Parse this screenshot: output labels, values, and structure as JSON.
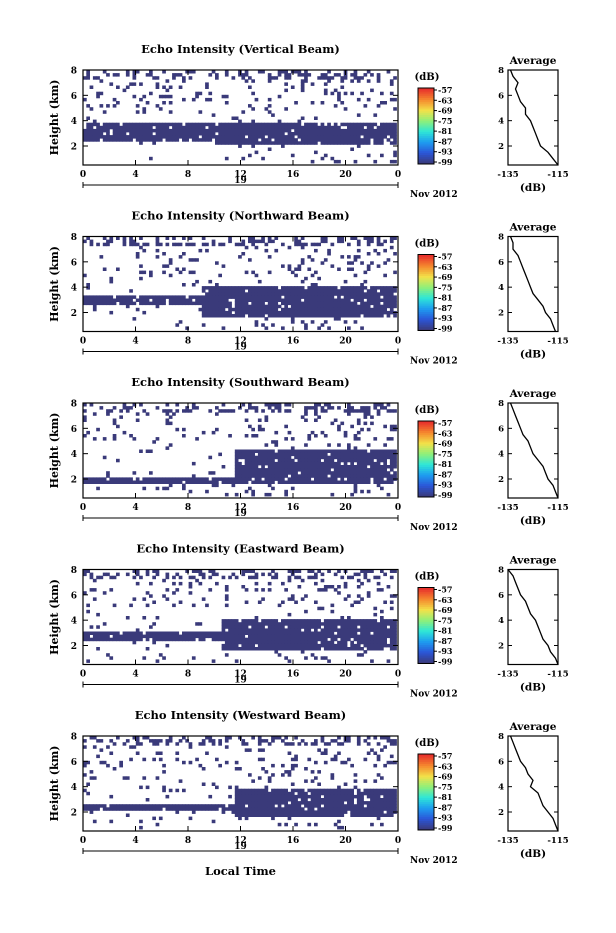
{
  "figure": {
    "xlabel": "Local Time",
    "date_label": "Nov 2012",
    "day_label": "19",
    "cbar_unit": "(dB)",
    "cbar_ticks": [
      "-57",
      "-63",
      "-69",
      "-75",
      "-81",
      "-87",
      "-93",
      "-99"
    ],
    "colormap": [
      "#3a3a7a",
      "#2b56d8",
      "#1e9cf0",
      "#2ee6d8",
      "#8ef07a",
      "#f2e24a",
      "#f58a2e",
      "#e8322c"
    ],
    "avg_title": "Average",
    "avg_xlabel": "(dB)"
  },
  "chart_data": [
    {
      "type": "heatmap",
      "title": "Echo Intensity (Vertical Beam)",
      "ylabel": "Height (km)",
      "xlim": [
        0,
        24
      ],
      "ylim": [
        0.5,
        8
      ],
      "xticks": [
        "0",
        "4",
        "8",
        "12",
        "16",
        "20",
        "0"
      ],
      "yticks": [
        "2",
        "4",
        "6",
        "8"
      ],
      "clim": [
        -99,
        -57
      ],
      "fill": [
        [
          0,
          10,
          2.2,
          3.8
        ],
        [
          10,
          24,
          1.9,
          3.8
        ]
      ],
      "avg": {
        "xlim": [
          -135,
          -115
        ],
        "xticks": [
          "-135",
          "-115"
        ],
        "yticks": [
          "2",
          "4",
          "6",
          "8"
        ],
        "x": [
          -115,
          -117,
          -119,
          -122,
          -123,
          -124,
          -125,
          -126,
          -128,
          -128,
          -130,
          -131,
          -132,
          -131,
          -133,
          -134
        ],
        "y": [
          0.5,
          1.0,
          1.5,
          2.0,
          2.5,
          3.0,
          3.5,
          4.0,
          4.5,
          5.0,
          5.5,
          6.0,
          6.5,
          7.0,
          7.5,
          8.0
        ]
      }
    },
    {
      "type": "heatmap",
      "title": "Echo Intensity (Northward Beam)",
      "ylabel": "Height (km)",
      "xlim": [
        0,
        24
      ],
      "ylim": [
        0.5,
        8
      ],
      "xticks": [
        "0",
        "4",
        "8",
        "12",
        "16",
        "20",
        "0"
      ],
      "yticks": [
        "2",
        "4",
        "6",
        "8"
      ],
      "clim": [
        -99,
        -57
      ],
      "fill": [
        [
          0,
          10,
          2.5,
          3.3
        ],
        [
          9,
          24,
          1.5,
          4.0
        ]
      ],
      "avg": {
        "xlim": [
          -135,
          -115
        ],
        "xticks": [
          "-135",
          "-115"
        ],
        "yticks": [
          "2",
          "4",
          "6",
          "8"
        ],
        "x": [
          -116,
          -117,
          -118,
          -120,
          -121,
          -123,
          -125,
          -126,
          -127,
          -128,
          -129,
          -130,
          -131,
          -133,
          -133,
          -134
        ],
        "y": [
          0.5,
          1.0,
          1.5,
          2.0,
          2.5,
          3.0,
          3.5,
          4.0,
          4.5,
          5.0,
          5.5,
          6.0,
          6.5,
          7.0,
          7.5,
          8.0
        ]
      }
    },
    {
      "type": "heatmap",
      "title": "Echo Intensity (Southward Beam)",
      "ylabel": "Height (km)",
      "xlim": [
        0,
        24
      ],
      "ylim": [
        0.5,
        8
      ],
      "xticks": [
        "0",
        "4",
        "8",
        "12",
        "16",
        "20",
        "0"
      ],
      "yticks": [
        "2",
        "4",
        "6",
        "8"
      ],
      "clim": [
        -99,
        -57
      ],
      "fill": [
        [
          0,
          11.5,
          1.4,
          1.9
        ],
        [
          11.5,
          24,
          1.5,
          4.2
        ]
      ],
      "avg": {
        "xlim": [
          -135,
          -115
        ],
        "xticks": [
          "-135",
          "-115"
        ],
        "yticks": [
          "2",
          "4",
          "6",
          "8"
        ],
        "x": [
          -115,
          -116,
          -117,
          -119,
          -120,
          -121,
          -123,
          -125,
          -126,
          -127,
          -129,
          -130,
          -131,
          -132,
          -133,
          -134
        ],
        "y": [
          0.5,
          1.0,
          1.5,
          2.0,
          2.5,
          3.0,
          3.5,
          4.0,
          4.5,
          5.0,
          5.5,
          6.0,
          6.5,
          7.0,
          7.5,
          8.0
        ]
      }
    },
    {
      "type": "heatmap",
      "title": "Echo Intensity (Eastward Beam)",
      "ylabel": "Height (km)",
      "xlim": [
        0,
        24
      ],
      "ylim": [
        0.5,
        8
      ],
      "xticks": [
        "0",
        "4",
        "8",
        "12",
        "16",
        "20",
        "0"
      ],
      "yticks": [
        "2",
        "4",
        "6",
        "8"
      ],
      "clim": [
        -99,
        -57
      ],
      "fill": [
        [
          0,
          10.5,
          2.3,
          2.9
        ],
        [
          10.5,
          24,
          1.5,
          4.0
        ]
      ],
      "avg": {
        "xlim": [
          -135,
          -115
        ],
        "xticks": [
          "-135",
          "-115"
        ],
        "yticks": [
          "2",
          "4",
          "6",
          "8"
        ],
        "x": [
          -115,
          -116,
          -118,
          -119,
          -121,
          -122,
          -123,
          -124,
          -126,
          -127,
          -128,
          -130,
          -131,
          -132,
          -133,
          -135
        ],
        "y": [
          0.5,
          1.0,
          1.5,
          2.0,
          2.5,
          3.0,
          3.5,
          4.0,
          4.5,
          5.0,
          5.5,
          6.0,
          6.5,
          7.0,
          7.5,
          8.0
        ]
      }
    },
    {
      "type": "heatmap",
      "title": "Echo Intensity (Westward Beam)",
      "ylabel": "Height (km)",
      "xlim": [
        0,
        24
      ],
      "ylim": [
        0.5,
        8
      ],
      "xticks": [
        "0",
        "4",
        "8",
        "12",
        "16",
        "20",
        "0"
      ],
      "yticks": [
        "2",
        "4",
        "6",
        "8"
      ],
      "clim": [
        -99,
        -57
      ],
      "fill": [
        [
          0,
          11.5,
          2.0,
          2.5
        ],
        [
          11.5,
          24,
          1.5,
          3.8
        ]
      ],
      "avg": {
        "xlim": [
          -135,
          -115
        ],
        "xticks": [
          "-135",
          "-115"
        ],
        "yticks": [
          "2",
          "4",
          "6",
          "8"
        ],
        "x": [
          -115,
          -116,
          -117,
          -119,
          -121,
          -122,
          -123,
          -126,
          -125,
          -127,
          -128,
          -130,
          -131,
          -132,
          -133,
          -134
        ],
        "y": [
          0.5,
          1.0,
          1.5,
          2.0,
          2.5,
          3.0,
          3.5,
          4.0,
          4.5,
          5.0,
          5.5,
          6.0,
          6.5,
          7.0,
          7.5,
          8.0
        ]
      }
    }
  ]
}
